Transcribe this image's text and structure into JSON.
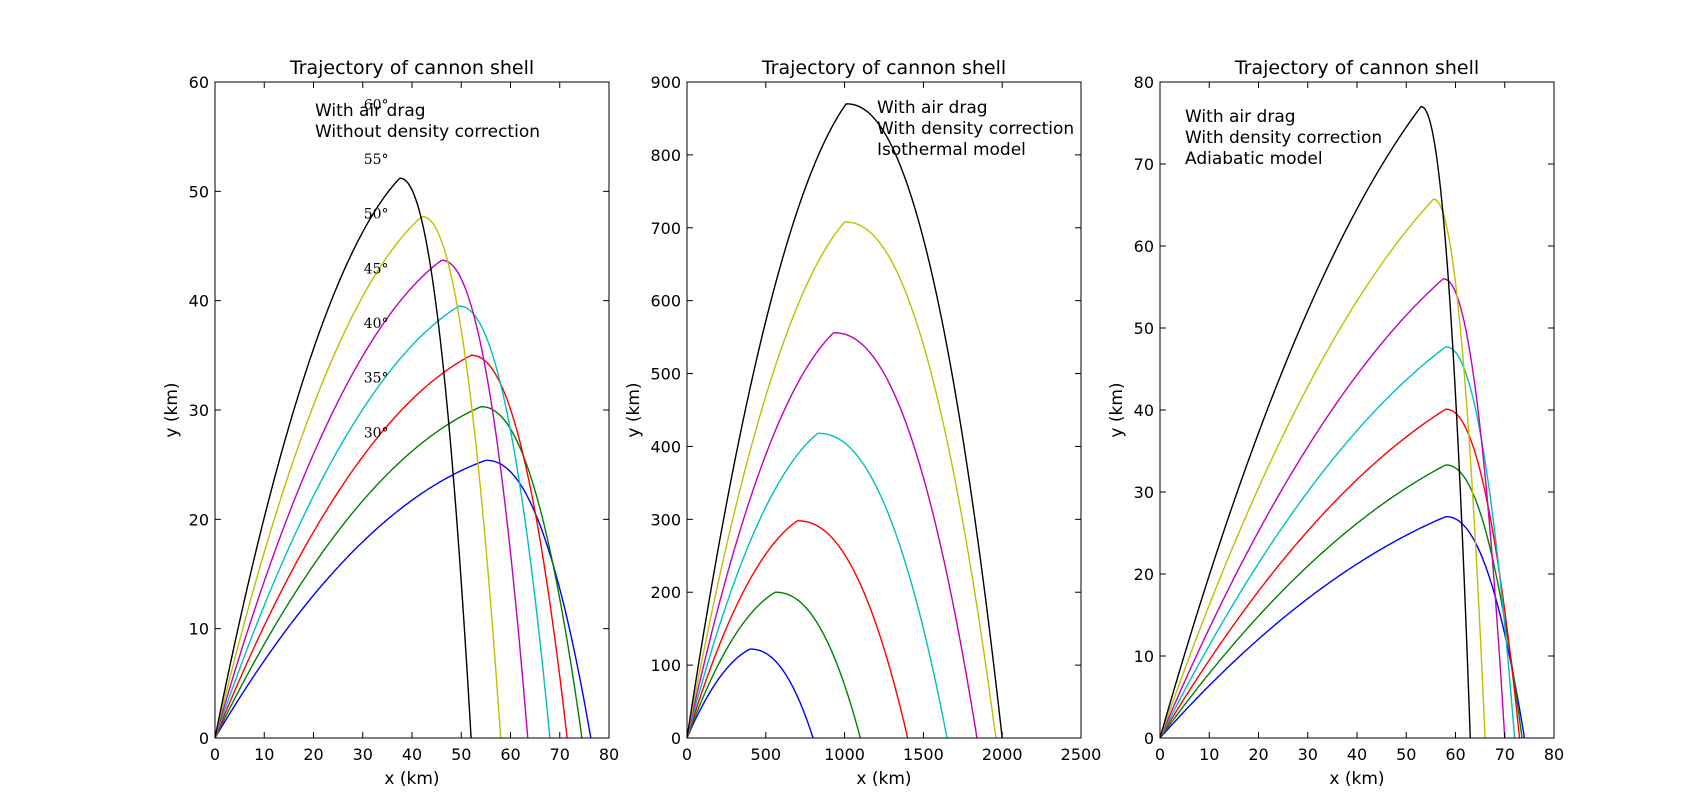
{
  "figure": {
    "background": "#ffffff",
    "series_colors": [
      "#0000ff",
      "#008000",
      "#ff0000",
      "#00bfbf",
      "#bf00bf",
      "#bfbf00",
      "#000000"
    ]
  },
  "chart_data": [
    {
      "type": "line",
      "title": "Trajectory of cannon shell",
      "xlabel": "x (km)",
      "ylabel": "y (km)",
      "xlim": [
        0,
        80
      ],
      "ylim": [
        0,
        60
      ],
      "xticks": [
        "0",
        "10",
        "20",
        "30",
        "40",
        "50",
        "60",
        "70",
        "80"
      ],
      "yticks": [
        "0",
        "10",
        "20",
        "30",
        "40",
        "50",
        "60"
      ],
      "annotations": [
        "With air drag",
        "Without density correction"
      ],
      "angle_labels": [
        "30°",
        "35°",
        "40°",
        "45°",
        "50°",
        "55°",
        "60°"
      ],
      "grid": false,
      "series": [
        {
          "angle": 30,
          "range": 76.3,
          "peak_x": 55.0,
          "peak_y": 25.4,
          "color": "#0000ff"
        },
        {
          "angle": 35,
          "range": 74.5,
          "peak_x": 54.0,
          "peak_y": 30.3,
          "color": "#008000"
        },
        {
          "angle": 40,
          "range": 71.5,
          "peak_x": 52.0,
          "peak_y": 35.0,
          "color": "#ff0000"
        },
        {
          "angle": 45,
          "range": 68.0,
          "peak_x": 49.5,
          "peak_y": 39.5,
          "color": "#00bfbf"
        },
        {
          "angle": 50,
          "range": 63.5,
          "peak_x": 46.0,
          "peak_y": 43.7,
          "color": "#bf00bf"
        },
        {
          "angle": 55,
          "range": 58.0,
          "peak_x": 42.0,
          "peak_y": 47.7,
          "color": "#bfbf00"
        },
        {
          "angle": 60,
          "range": 52.0,
          "peak_x": 37.5,
          "peak_y": 51.2,
          "color": "#000000"
        }
      ]
    },
    {
      "type": "line",
      "title": "Trajectory of cannon shell",
      "xlabel": "x (km)",
      "ylabel": "y (km)",
      "xlim": [
        0,
        2500
      ],
      "ylim": [
        0,
        900
      ],
      "xticks": [
        "0",
        "500",
        "1000",
        "1500",
        "2000",
        "2500"
      ],
      "yticks": [
        "0",
        "100",
        "200",
        "300",
        "400",
        "500",
        "600",
        "700",
        "800",
        "900"
      ],
      "annotations": [
        "With air drag",
        "With density correction",
        "Isothermal model"
      ],
      "grid": false,
      "series": [
        {
          "angle": 30,
          "range": 800,
          "peak_x": 400,
          "peak_y": 122,
          "color": "#0000ff"
        },
        {
          "angle": 35,
          "range": 1100,
          "peak_x": 560,
          "peak_y": 200,
          "color": "#008000"
        },
        {
          "angle": 40,
          "range": 1400,
          "peak_x": 700,
          "peak_y": 298,
          "color": "#ff0000"
        },
        {
          "angle": 45,
          "range": 1650,
          "peak_x": 830,
          "peak_y": 418,
          "color": "#00bfbf"
        },
        {
          "angle": 50,
          "range": 1840,
          "peak_x": 930,
          "peak_y": 556,
          "color": "#bf00bf"
        },
        {
          "angle": 55,
          "range": 1960,
          "peak_x": 1000,
          "peak_y": 708,
          "color": "#bfbf00"
        },
        {
          "angle": 60,
          "range": 2000,
          "peak_x": 1010,
          "peak_y": 870,
          "color": "#000000"
        }
      ]
    },
    {
      "type": "line",
      "title": "Trajectory of cannon shell",
      "xlabel": "x (km)",
      "ylabel": "y (km)",
      "xlim": [
        0,
        80
      ],
      "ylim": [
        0,
        80
      ],
      "xticks": [
        "0",
        "10",
        "20",
        "30",
        "40",
        "50",
        "60",
        "70",
        "80"
      ],
      "yticks": [
        "0",
        "10",
        "20",
        "30",
        "40",
        "50",
        "60",
        "70",
        "80"
      ],
      "annotations": [
        "With air drag",
        "With density correction",
        "Adiabatic model"
      ],
      "grid": false,
      "series": [
        {
          "angle": 30,
          "range": 74.0,
          "peak_x": 58.0,
          "peak_y": 27.0,
          "color": "#0000ff"
        },
        {
          "angle": 35,
          "range": 73.5,
          "peak_x": 58.0,
          "peak_y": 33.3,
          "color": "#008000"
        },
        {
          "angle": 40,
          "range": 73.0,
          "peak_x": 58.0,
          "peak_y": 40.1,
          "color": "#ff0000"
        },
        {
          "angle": 45,
          "range": 72.0,
          "peak_x": 58.0,
          "peak_y": 47.7,
          "color": "#00bfbf"
        },
        {
          "angle": 50,
          "range": 70.0,
          "peak_x": 57.5,
          "peak_y": 56.0,
          "color": "#bf00bf"
        },
        {
          "angle": 55,
          "range": 66.0,
          "peak_x": 55.5,
          "peak_y": 65.7,
          "color": "#bfbf00"
        },
        {
          "angle": 60,
          "range": 63.0,
          "peak_x": 53.0,
          "peak_y": 77.0,
          "color": "#000000"
        }
      ]
    }
  ]
}
